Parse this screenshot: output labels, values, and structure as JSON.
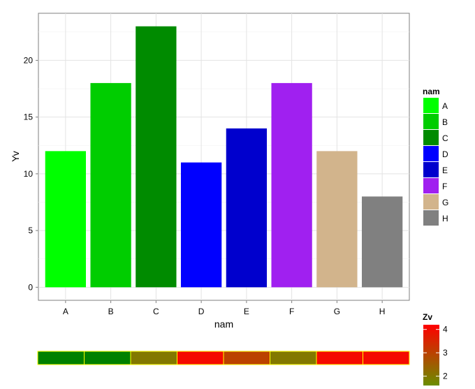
{
  "chart_data": [
    {
      "type": "bar",
      "title": "",
      "xlabel": "nam",
      "ylabel": "Yv",
      "categories": [
        "A",
        "B",
        "C",
        "D",
        "E",
        "F",
        "G",
        "H"
      ],
      "values": [
        12,
        18,
        23,
        11,
        14,
        18,
        12,
        8
      ],
      "colors": [
        "#00ff00",
        "#00cd00",
        "#008b00",
        "#0000ff",
        "#0000cd",
        "#a020f0",
        "#d2b48c",
        "#808080"
      ],
      "ylim": [
        -1.15,
        24.15
      ],
      "yticks": [
        0,
        5,
        10,
        15,
        20
      ],
      "grid": true,
      "legend": {
        "title": "nam",
        "placement": "right",
        "entries": [
          "A",
          "B",
          "C",
          "D",
          "E",
          "F",
          "G",
          "H"
        ]
      }
    },
    {
      "type": "heatmap",
      "values": [
        1,
        1,
        2,
        4,
        3,
        2,
        4,
        4
      ],
      "cell_border_color": "#ffff00",
      "colorbar": {
        "title": "Zv",
        "placement": "right",
        "low": 1.6,
        "high": 4.2,
        "ticks": [
          2,
          3,
          4
        ],
        "color_low": "#6b8e00",
        "color_high": "#ff0000"
      }
    }
  ]
}
